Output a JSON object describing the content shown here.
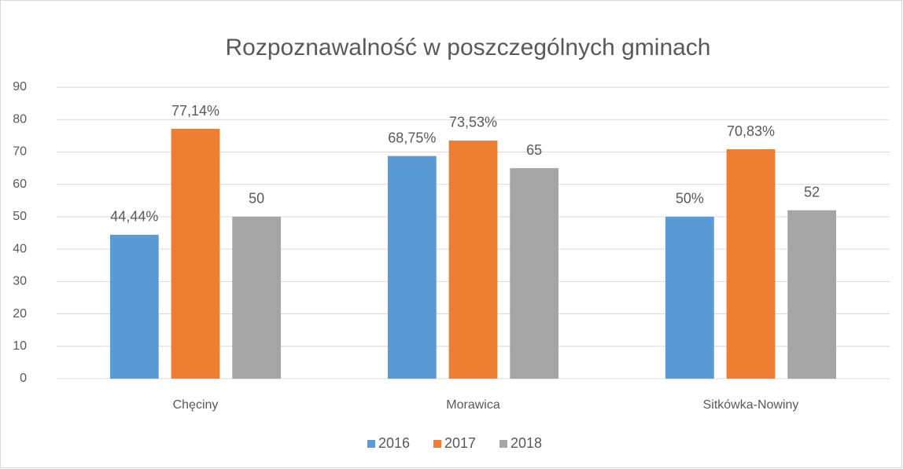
{
  "chart_data": {
    "type": "bar",
    "title": "Rozpoznawalność w poszczególnych gminach",
    "categories": [
      "Chęciny",
      "Morawica",
      "Sitkówka-Nowiny"
    ],
    "series": [
      {
        "name": "2016",
        "color": "#5b9bd5",
        "values": [
          44.44,
          68.75,
          50
        ],
        "value_labels": [
          "44,44%",
          "68,75%",
          "50%"
        ]
      },
      {
        "name": "2017",
        "color": "#ed7d31",
        "values": [
          77.14,
          73.53,
          70.83
        ],
        "value_labels": [
          "77,14%",
          "73,53%",
          "70,83%"
        ]
      },
      {
        "name": "2018",
        "color": "#a5a5a5",
        "values": [
          50,
          65,
          52
        ]
      }
    ],
    "ylim": [
      0,
      90
    ],
    "yticks": [
      0,
      10,
      20,
      30,
      40,
      50,
      60,
      70,
      80,
      90
    ],
    "grid": true,
    "legend": "bottom"
  }
}
